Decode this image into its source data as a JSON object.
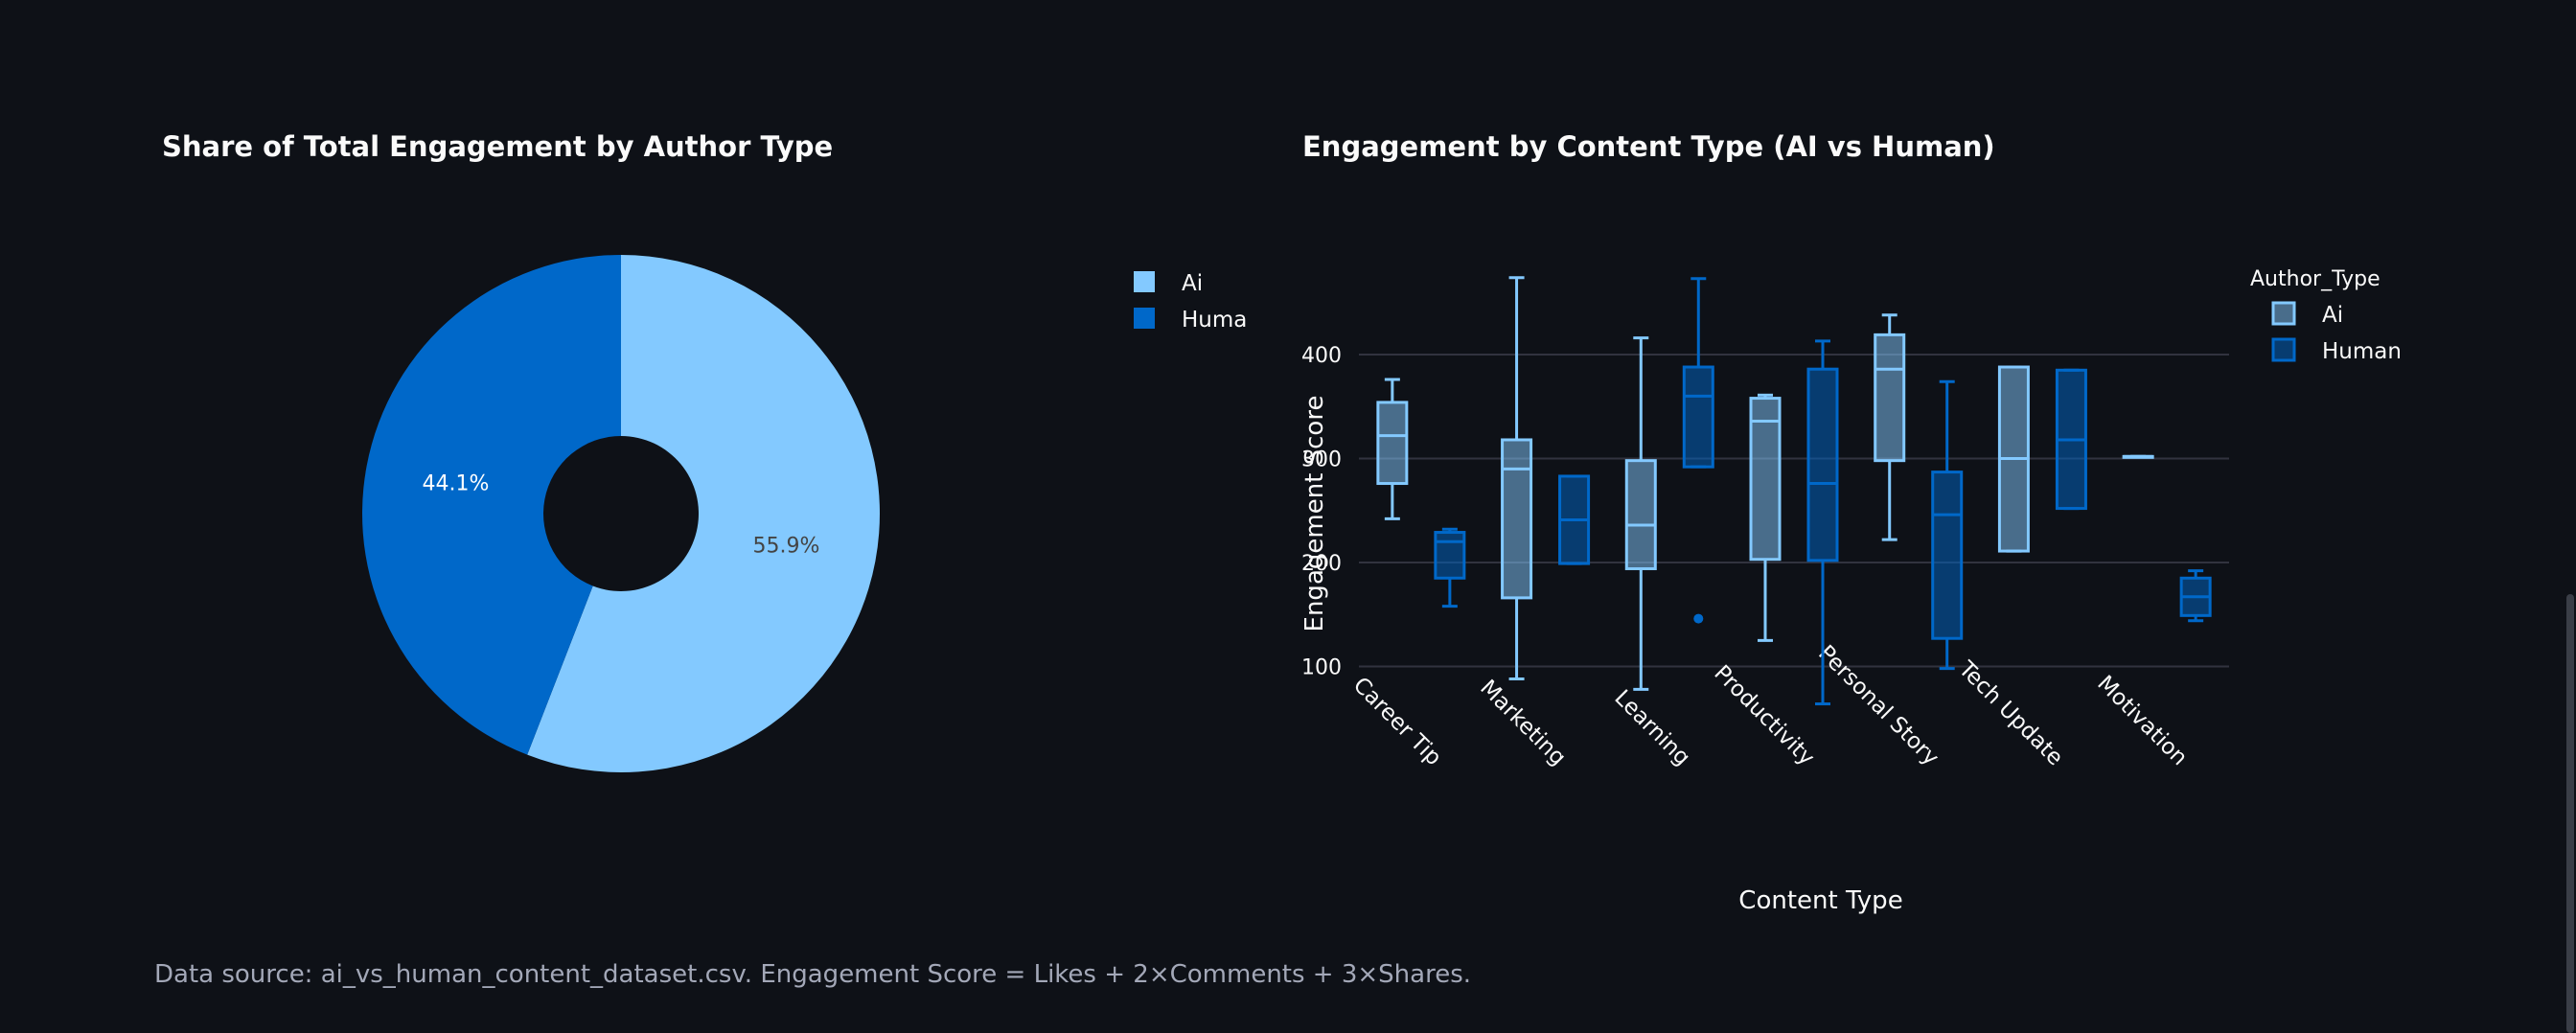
{
  "pie": {
    "title": "Share of Total Engagement by Author Type",
    "legend": [
      {
        "label": "Ai",
        "color": "#83c9ff"
      },
      {
        "label": "Human",
        "color": "#0068c9"
      }
    ]
  },
  "box": {
    "title": "Engagement by Content Type (AI vs Human)",
    "legend_title": "Author_Type",
    "legend": [
      {
        "label": "Ai",
        "color": "#83c9ff"
      },
      {
        "label": "Human",
        "color": "#0068c9"
      }
    ]
  },
  "footer": "Data source: ai_vs_human_content_dataset.csv. Engagement Score = Likes + 2×Comments + 3×Shares.",
  "chart_data": [
    {
      "type": "pie",
      "title": "Share of Total Engagement by Author Type",
      "hole": true,
      "legend_position": "top-right",
      "slices": [
        {
          "label": "Ai",
          "value": 55.9,
          "text": "55.9%",
          "color": "#83c9ff"
        },
        {
          "label": "Human",
          "value": 44.1,
          "text": "44.1%",
          "color": "#0068c9"
        }
      ]
    },
    {
      "type": "box",
      "title": "Engagement by Content Type (AI vs Human)",
      "xlabel": "Content Type",
      "ylabel": "Engagement Score",
      "yticks": [
        100,
        200,
        300,
        400
      ],
      "ylim": [
        30,
        500
      ],
      "grid": true,
      "legend_position": "top-right",
      "categories": [
        "Career Tip",
        "Marketing",
        "Learning",
        "Productivity",
        "Personal Story",
        "Tech Update",
        "Motivation"
      ],
      "series": [
        {
          "name": "Ai",
          "color": "#83c9ff",
          "boxes": [
            {
              "min": 242,
              "q1": 276,
              "median": 322,
              "q3": 354,
              "max": 376,
              "outliers": []
            },
            {
              "min": 88,
              "q1": 166,
              "median": 290,
              "q3": 318,
              "max": 474,
              "outliers": []
            },
            {
              "min": 78,
              "q1": 194,
              "median": 236,
              "q3": 298,
              "max": 416,
              "outliers": []
            },
            {
              "min": 125,
              "q1": 203,
              "median": 336,
              "q3": 358,
              "max": 361,
              "outliers": []
            },
            {
              "min": 222,
              "q1": 298,
              "median": 386,
              "q3": 419,
              "max": 438,
              "outliers": []
            },
            {
              "min": 211,
              "q1": 211,
              "median": 300,
              "q3": 388,
              "max": 388,
              "outliers": []
            },
            {
              "min": 302,
              "q1": 302,
              "median": 302,
              "q3": 302,
              "max": 302,
              "outliers": []
            }
          ]
        },
        {
          "name": "Human",
          "color": "#0068c9",
          "boxes": [
            {
              "min": 158,
              "q1": 185,
              "median": 220,
              "q3": 229,
              "max": 232,
              "outliers": []
            },
            {
              "min": 199,
              "q1": 199,
              "median": 241,
              "q3": 283,
              "max": 283,
              "outliers": []
            },
            {
              "min": 292,
              "q1": 292,
              "median": 360,
              "q3": 388,
              "max": 473,
              "outliers": [
                146
              ]
            },
            {
              "min": 64,
              "q1": 202,
              "median": 276,
              "q3": 386,
              "max": 413,
              "outliers": []
            },
            {
              "min": 98,
              "q1": 127,
              "median": 246,
              "q3": 287,
              "max": 374,
              "outliers": []
            },
            {
              "min": 252,
              "q1": 252,
              "median": 318,
              "q3": 385,
              "max": 385,
              "outliers": []
            },
            {
              "min": 144,
              "q1": 149,
              "median": 167,
              "q3": 185,
              "max": 192,
              "outliers": []
            }
          ]
        }
      ]
    }
  ]
}
